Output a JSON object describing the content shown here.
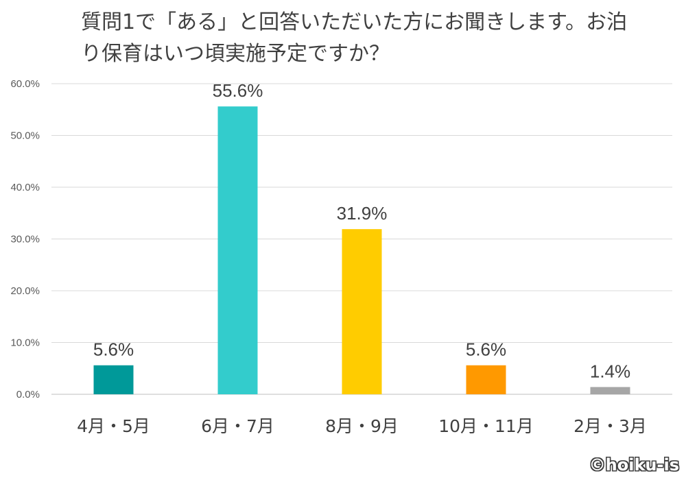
{
  "chart_data": {
    "type": "bar",
    "title": "質問1で「ある」と回答いただいた方にお聞きします。お泊り保育はいつ頃実施予定ですか？",
    "categories": [
      "4月・5月",
      "6月・7月",
      "8月・9月",
      "10月・11月",
      "2月・3月"
    ],
    "values": [
      5.6,
      55.6,
      31.9,
      5.6,
      1.4
    ],
    "value_labels": [
      "5.6%",
      "55.6%",
      "31.9%",
      "5.6%",
      "1.4%"
    ],
    "bar_colors": [
      "#009999",
      "#33CCCC",
      "#FFCC00",
      "#FF9900",
      "#A6A6A6"
    ],
    "y_ticks": [
      0,
      10,
      20,
      30,
      40,
      50,
      60
    ],
    "y_tick_labels": [
      "0.0%",
      "10.0%",
      "20.0%",
      "30.0%",
      "40.0%",
      "50.0%",
      "60.0%"
    ],
    "ylim": [
      0,
      60
    ],
    "xlabel": "",
    "ylabel": "",
    "grid": true,
    "legend": "none"
  },
  "copyright": "©hoiku-is"
}
